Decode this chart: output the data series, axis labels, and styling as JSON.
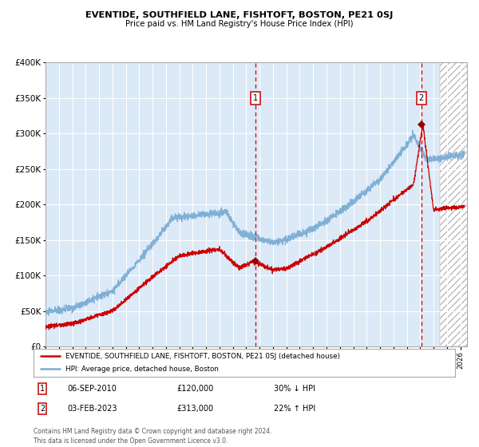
{
  "title": "EVENTIDE, SOUTHFIELD LANE, FISHTOFT, BOSTON, PE21 0SJ",
  "subtitle": "Price paid vs. HM Land Registry's House Price Index (HPI)",
  "legend_line1": "EVENTIDE, SOUTHFIELD LANE, FISHTOFT, BOSTON, PE21 0SJ (detached house)",
  "legend_line2": "HPI: Average price, detached house, Boston",
  "note1_date": "06-SEP-2010",
  "note1_price": "£120,000",
  "note1_hpi": "30% ↓ HPI",
  "note2_date": "03-FEB-2023",
  "note2_price": "£313,000",
  "note2_hpi": "22% ↑ HPI",
  "copyright": "Contains HM Land Registry data © Crown copyright and database right 2024.\nThis data is licensed under the Open Government Licence v3.0.",
  "sale1_date_num": 2010.68,
  "sale1_price": 120000,
  "sale2_date_num": 2023.09,
  "sale2_price": 313000,
  "ylim": [
    0,
    400000
  ],
  "xlim_start": 1995.0,
  "xlim_end": 2026.5,
  "bg_color": "#dce9f7",
  "hatch_start": 2024.5,
  "red_line_color": "#cc0000",
  "blue_line_color": "#7aadd4",
  "grid_color": "#ffffff",
  "sale_marker_color": "#990000"
}
